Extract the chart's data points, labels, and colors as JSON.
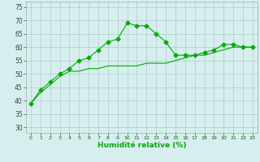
{
  "line1_x": [
    0,
    1,
    2,
    3,
    4,
    5,
    6,
    7,
    8,
    9,
    10,
    11,
    12,
    13,
    14,
    15,
    16,
    17,
    18,
    19,
    20,
    21,
    22,
    23
  ],
  "line1_y": [
    39,
    44,
    47,
    50,
    52,
    55,
    56,
    59,
    62,
    63,
    69,
    68,
    68,
    65,
    62,
    57,
    57,
    57,
    58,
    59,
    61,
    61,
    60,
    60
  ],
  "line2_x": [
    0,
    1,
    2,
    3,
    4,
    5,
    6,
    7,
    8,
    9,
    10,
    11,
    12,
    13,
    14,
    15,
    16,
    17,
    18,
    19,
    20,
    21,
    22,
    23
  ],
  "line2_y": [
    39,
    43,
    46,
    49,
    51,
    51,
    52,
    52,
    53,
    53,
    53,
    53,
    54,
    54,
    54,
    55,
    56,
    57,
    57,
    58,
    59,
    60,
    60,
    60
  ],
  "line_color": "#00aa00",
  "marker": "D",
  "marker_size": 2.5,
  "xlabel": "Humidité relative (%)",
  "xlim": [
    -0.5,
    23.5
  ],
  "ylim": [
    28,
    77
  ],
  "yticks": [
    30,
    35,
    40,
    45,
    50,
    55,
    60,
    65,
    70,
    75
  ],
  "xticks": [
    0,
    1,
    2,
    3,
    4,
    5,
    6,
    7,
    8,
    9,
    10,
    11,
    12,
    13,
    14,
    15,
    16,
    17,
    18,
    19,
    20,
    21,
    22,
    23
  ],
  "bg_color": "#d6eeee",
  "grid_color": "#aacccc"
}
